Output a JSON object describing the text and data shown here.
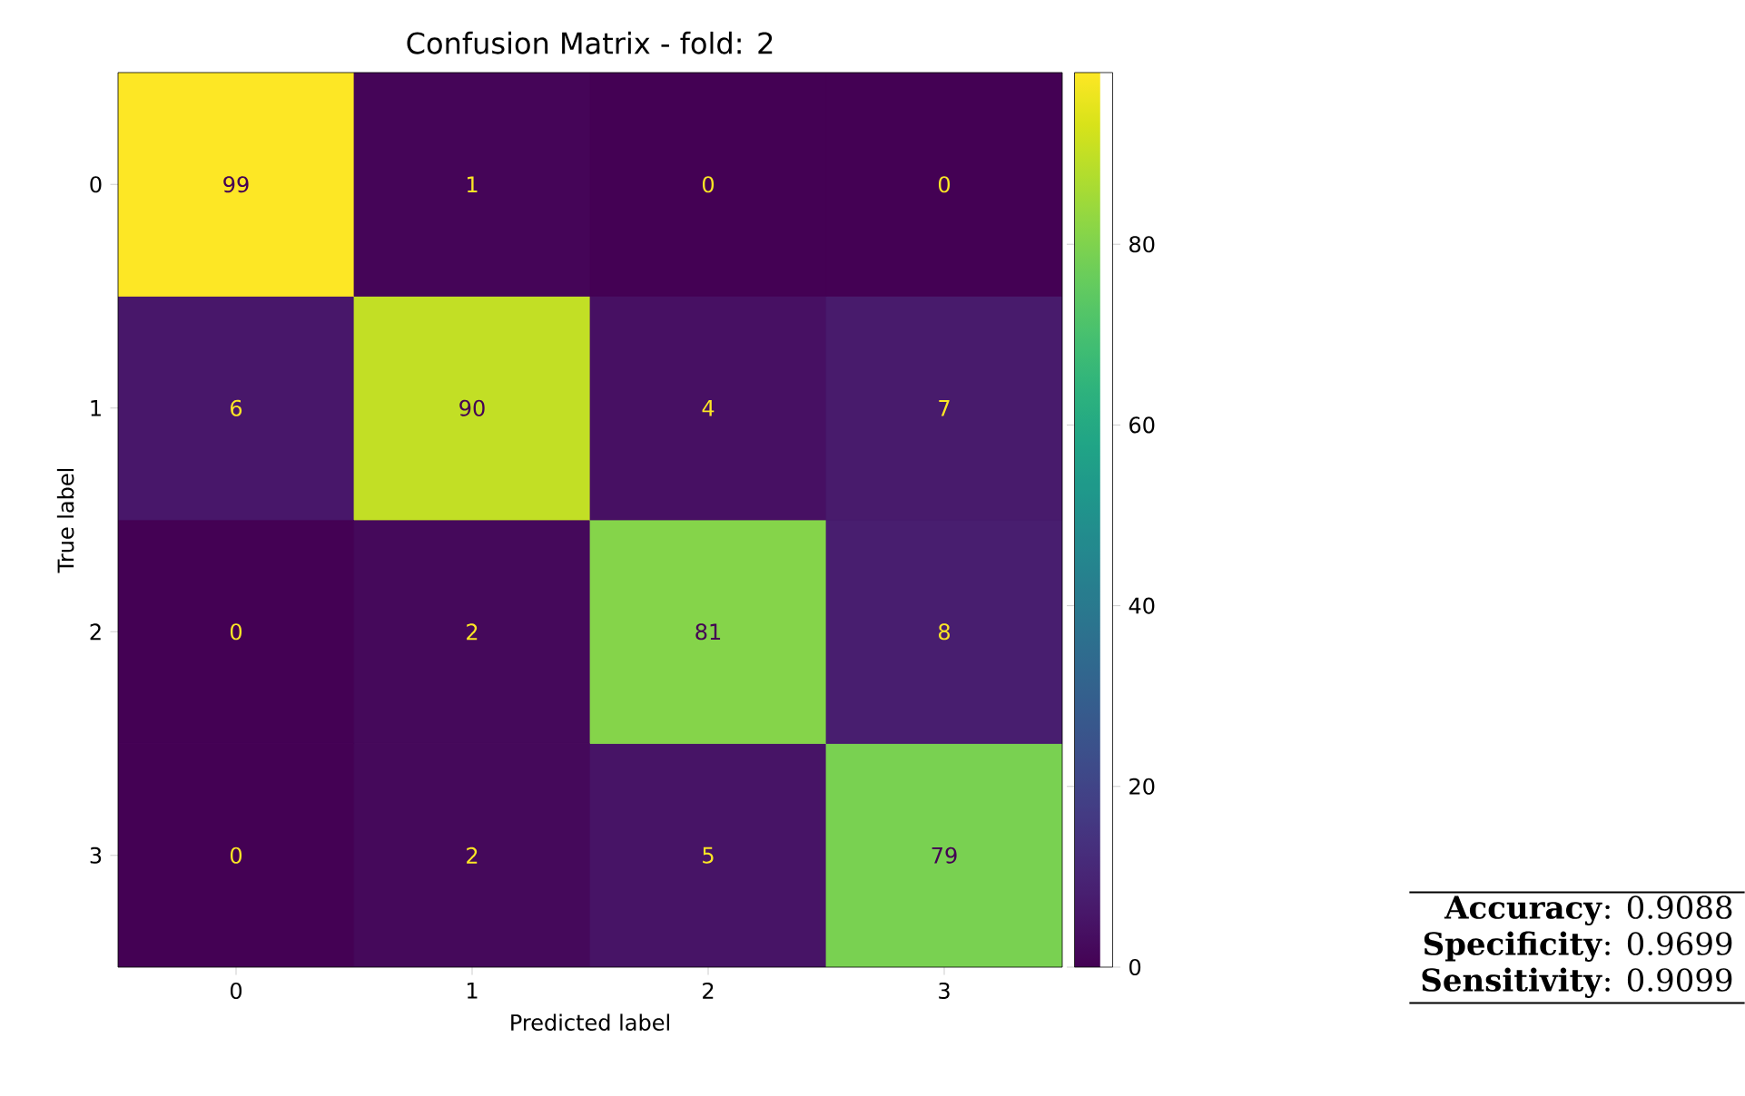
{
  "chart_data": {
    "type": "heatmap",
    "title": "Confusion Matrix - fold: 2",
    "xlabel": "Predicted label",
    "ylabel": "True label",
    "categories": [
      "0",
      "1",
      "2",
      "3"
    ],
    "y_categories": [
      "0",
      "1",
      "2",
      "3"
    ],
    "cells": [
      [
        99,
        1,
        0,
        0
      ],
      [
        6,
        90,
        4,
        7
      ],
      [
        0,
        2,
        81,
        8
      ],
      [
        0,
        2,
        5,
        79
      ]
    ],
    "data_labels": true,
    "clim": [
      0,
      99
    ],
    "cticks": [
      0,
      20,
      40,
      60,
      80
    ],
    "annotations": [
      "**Accuracy**: 0.9088",
      "**Specificity**: 0.9699",
      "**Sensitivity**: 0.9099"
    ]
  }
}
